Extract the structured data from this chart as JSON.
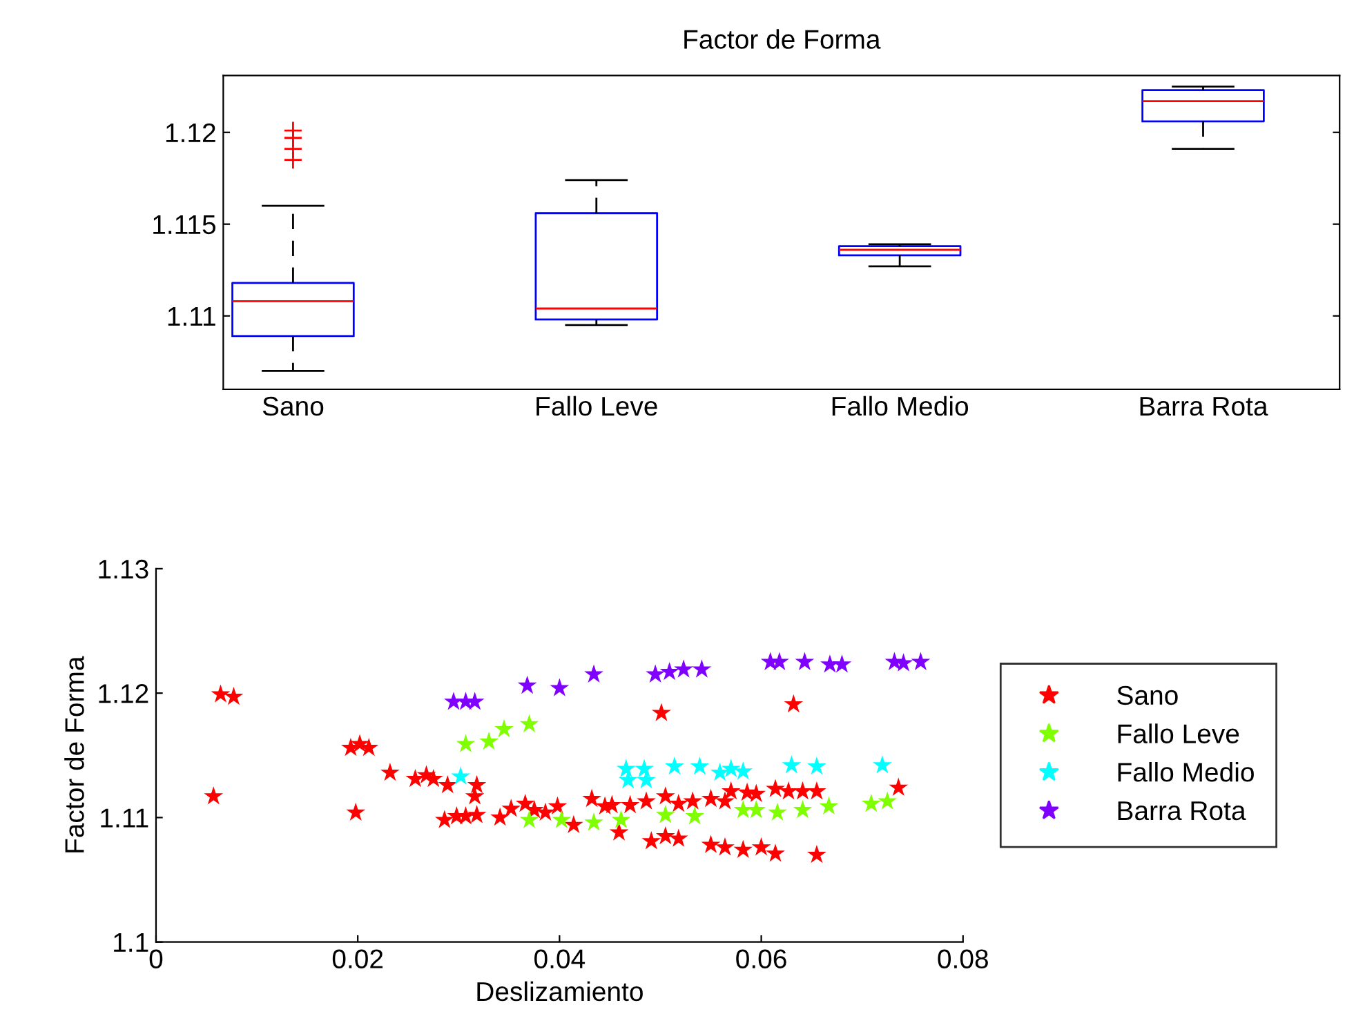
{
  "chart_data": [
    {
      "type": "box",
      "title": "Factor de Forma",
      "categories": [
        "Sano",
        "Fallo Leve",
        "Fallo Medio",
        "Barra Rota"
      ],
      "boxes": [
        {
          "low": 1.107,
          "q1": 1.1089,
          "median": 1.1108,
          "q3": 1.1118,
          "high": 1.116,
          "outliers": [
            1.1201,
            1.1197,
            1.1191,
            1.1185
          ]
        },
        {
          "low": 1.1095,
          "q1": 1.1098,
          "median": 1.1104,
          "q3": 1.1156,
          "high": 1.1174
        },
        {
          "low": 1.1127,
          "q1": 1.1133,
          "median": 1.1136,
          "q3": 1.1138,
          "high": 1.1139
        },
        {
          "low": 1.1191,
          "q1": 1.1206,
          "median": 1.1217,
          "q3": 1.1223,
          "high": 1.1225
        }
      ],
      "ylim": [
        1.106,
        1.1231
      ],
      "yticks": [
        1.11,
        1.115,
        1.12
      ],
      "grid": false
    },
    {
      "type": "scatter",
      "xlabel": "Deslizamiento",
      "ylabel": "Factor de Forma",
      "xlim": [
        0,
        0.08
      ],
      "xticks": [
        0,
        0.02,
        0.04,
        0.06,
        0.08
      ],
      "ylim": [
        1.1,
        1.13
      ],
      "yticks": [
        1.1,
        1.11,
        1.12,
        1.13
      ],
      "legend": "right",
      "marker": "star",
      "grid": false,
      "series": [
        {
          "name": "Sano",
          "color": "#ff0000",
          "x": [
            0.0057,
            0.0064,
            0.0077,
            0.0193,
            0.0202,
            0.0211,
            0.0198,
            0.0232,
            0.0257,
            0.0268,
            0.0275,
            0.0289,
            0.0286,
            0.0298,
            0.0307,
            0.0318,
            0.0318,
            0.0316,
            0.0341,
            0.0352,
            0.0366,
            0.0375,
            0.0386,
            0.0398,
            0.0414,
            0.0432,
            0.0445,
            0.0452,
            0.0459,
            0.047,
            0.0486,
            0.0505,
            0.0518,
            0.0532,
            0.055,
            0.0564,
            0.057,
            0.0586,
            0.0595,
            0.0614,
            0.0627,
            0.0641,
            0.0655,
            0.0491,
            0.0505,
            0.0518,
            0.055,
            0.0564,
            0.0582,
            0.06,
            0.0614,
            0.0655,
            0.0501,
            0.0632,
            0.0736
          ],
          "values": [
            1.1117,
            1.1199,
            1.1197,
            1.1156,
            1.1159,
            1.1156,
            1.1104,
            1.1136,
            1.1131,
            1.1134,
            1.1131,
            1.1126,
            1.1098,
            1.1101,
            1.1101,
            1.1102,
            1.1126,
            1.1117,
            1.11,
            1.1107,
            1.1111,
            1.1106,
            1.1104,
            1.1109,
            1.1094,
            1.1115,
            1.1109,
            1.111,
            1.1088,
            1.111,
            1.1113,
            1.1117,
            1.1111,
            1.1113,
            1.1115,
            1.1113,
            1.1121,
            1.112,
            1.1119,
            1.1123,
            1.1121,
            1.1121,
            1.1121,
            1.1081,
            1.1085,
            1.1083,
            1.1078,
            1.1076,
            1.1074,
            1.1076,
            1.1071,
            1.107,
            1.1184,
            1.1191,
            1.1124
          ]
        },
        {
          "name": "Fallo Leve",
          "color": "#80ff00",
          "x": [
            0.0307,
            0.033,
            0.0345,
            0.037,
            0.037,
            0.0402,
            0.0434,
            0.0461,
            0.0505,
            0.0534,
            0.0582,
            0.0595,
            0.0616,
            0.0641,
            0.0667,
            0.0709,
            0.0725
          ],
          "values": [
            1.1159,
            1.1161,
            1.1171,
            1.1175,
            1.1098,
            1.1098,
            1.1096,
            1.1098,
            1.1102,
            1.1101,
            1.1106,
            1.1106,
            1.1104,
            1.1106,
            1.1109,
            1.1111,
            1.1113
          ]
        },
        {
          "name": "Fallo Medio",
          "color": "#00ffff",
          "x": [
            0.0302,
            0.0466,
            0.0468,
            0.0484,
            0.0486,
            0.0514,
            0.0539,
            0.0559,
            0.057,
            0.0582,
            0.063,
            0.0655,
            0.072
          ],
          "values": [
            1.1133,
            1.1139,
            1.113,
            1.1139,
            1.113,
            1.1141,
            1.1141,
            1.1136,
            1.1139,
            1.1137,
            1.1142,
            1.1141,
            1.1142
          ]
        },
        {
          "name": "Barra Rota",
          "color": "#8000ff",
          "x": [
            0.0295,
            0.0307,
            0.0316,
            0.0368,
            0.04,
            0.0434,
            0.0495,
            0.0509,
            0.0523,
            0.0541,
            0.0609,
            0.0618,
            0.0643,
            0.0668,
            0.068,
            0.0732,
            0.0741,
            0.0758
          ],
          "values": [
            1.1193,
            1.1193,
            1.1193,
            1.1206,
            1.1204,
            1.1215,
            1.1215,
            1.1217,
            1.1219,
            1.1219,
            1.1225,
            1.1225,
            1.1225,
            1.1223,
            1.1223,
            1.1225,
            1.1224,
            1.1225
          ]
        }
      ]
    }
  ]
}
